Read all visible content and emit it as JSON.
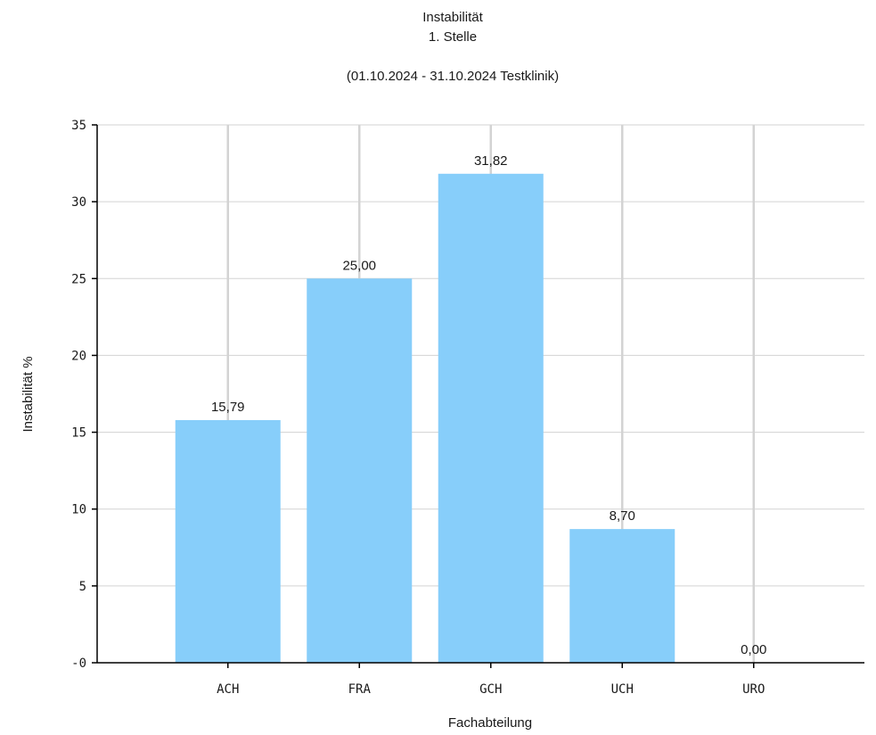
{
  "chart_data": {
    "type": "bar",
    "title": "Instabilität",
    "subtitle": "1. Stelle",
    "period": "(01.10.2024 - 31.10.2024 Testklinik)",
    "xlabel": "Fachabteilung",
    "ylabel": "Instabilität %",
    "categories": [
      "ACH",
      "FRA",
      "GCH",
      "UCH",
      "URO"
    ],
    "values": [
      15.79,
      25.0,
      31.82,
      8.7,
      0.0
    ],
    "value_labels": [
      "15,79",
      "25,00",
      "31,82",
      "8,70",
      "0,00"
    ],
    "ylim": [
      0,
      35
    ],
    "yticks": [
      0,
      5,
      10,
      15,
      20,
      25,
      30,
      35
    ],
    "ytick_labels": [
      "-0",
      "5",
      "10",
      "15",
      "20",
      "25",
      "30",
      "35"
    ],
    "grid": true,
    "colors": {
      "bar": "#87CEFA",
      "grid": "#d3d3d3",
      "axis": "#000000"
    }
  }
}
